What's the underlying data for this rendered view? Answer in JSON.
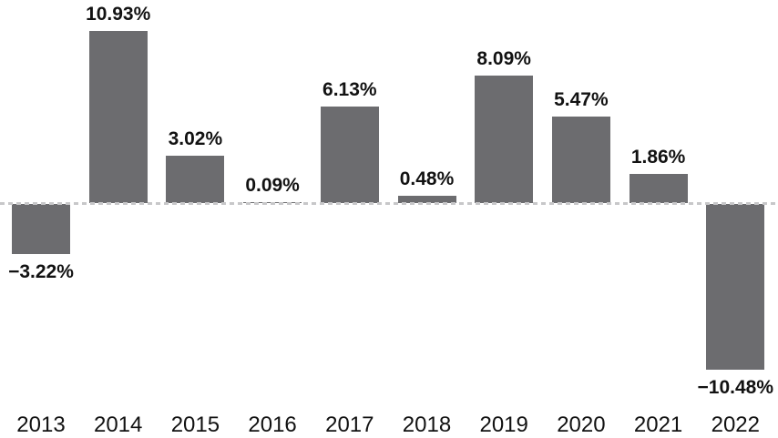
{
  "chart_data": {
    "type": "bar",
    "title": "",
    "xlabel": "",
    "ylabel": "",
    "categories": [
      "2013",
      "2014",
      "2015",
      "2016",
      "2017",
      "2018",
      "2019",
      "2020",
      "2021",
      "2022"
    ],
    "values": [
      -3.22,
      10.93,
      3.02,
      0.09,
      6.13,
      0.48,
      8.09,
      5.47,
      1.86,
      -10.48
    ],
    "value_labels": [
      "−3.22%",
      "10.93%",
      "3.02%",
      "0.09%",
      "6.13%",
      "0.48%",
      "8.09%",
      "5.47%",
      "1.86%",
      "−10.48%"
    ],
    "ylim": [
      -12.5,
      12.5
    ],
    "grid": false,
    "legend": false,
    "zero_baseline": {
      "style": "dashed",
      "color": "#C7C7C9"
    },
    "bar_color": "#6C6C6F",
    "label_color": "#121212",
    "tick_label_color": "#121212",
    "background_color": "#FFFFFF"
  }
}
